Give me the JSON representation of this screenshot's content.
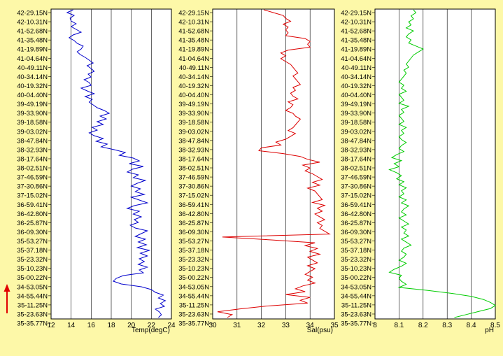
{
  "latitudes": [
    "42-29.15N",
    "42-10.31N",
    "41-52.68N",
    "41-35.48N",
    "41-19.89N",
    "41-04.64N",
    "40-49.11N",
    "40-34.14N",
    "40-19.32N",
    "40-04.40N",
    "39-49.19N",
    "39-33.90N",
    "39-18.58N",
    "39-03.02N",
    "38-47.84N",
    "38-32.93N",
    "38-17.64N",
    "38-02.51N",
    "37-46.59N",
    "37-30.86N",
    "37-15.02N",
    "36-59.41N",
    "36-42.80N",
    "36-25.87N",
    "36-09.30N",
    "35-53.27N",
    "35-37.18N",
    "35-23.32N",
    "35-10.23N",
    "35-00.22N",
    "34-53.05N",
    "34-55.44N",
    "35-11.25N",
    "35-23.63N",
    "35-35.77N"
  ],
  "colors": {
    "background": "#fdf8a8",
    "plot_bg": "#ffffff",
    "grid": "#000000",
    "arrow": "#e00000",
    "temp": "#0000cc",
    "sal": "#dd0000",
    "ph": "#00cc00"
  },
  "chart_data": [
    {
      "type": "line",
      "xlabel": "Temp(degC)",
      "xlim": [
        12,
        24
      ],
      "xticks": [
        12,
        14,
        16,
        18,
        20,
        22,
        24
      ],
      "series": [
        {
          "values": [
            14.2,
            13.6,
            14.3,
            13.9,
            14.0,
            14.5,
            14.0,
            14.5,
            15.0,
            14.2,
            13.8,
            14.3,
            14.6,
            15.2,
            15.0,
            14.6,
            14.9,
            15.4,
            15.8,
            16.2,
            15.6,
            16.0,
            16.3,
            15.7,
            16.0,
            15.3,
            15.8,
            16.0,
            15.0,
            15.6,
            16.3,
            15.4,
            16.1,
            15.8,
            16.2,
            16.6,
            17.3,
            17.8,
            16.9,
            17.5,
            16.6,
            17.2,
            16.1,
            16.6,
            15.8,
            16.3,
            17.2,
            16.5,
            17.6,
            17.0,
            18.3,
            19.4,
            18.8,
            20.2,
            20.8,
            19.8,
            21.2,
            20.1,
            19.6,
            20.7,
            20.2,
            21.4,
            20.6,
            20.0,
            20.9,
            20.4,
            21.3,
            20.0,
            20.8,
            21.6,
            20.3,
            19.6,
            20.8,
            20.2,
            21.0,
            20.3,
            20.7,
            19.9,
            20.4,
            21.6,
            21.0,
            20.4,
            21.4,
            20.7,
            21.5,
            20.6,
            21.8,
            20.9,
            21.6,
            20.8,
            21.3,
            20.7,
            21.6,
            20.8,
            21.2,
            19.2,
            18.5,
            18.2,
            19.0,
            21.0,
            22.0,
            22.4,
            23.2,
            22.7,
            23.4,
            22.9,
            23.3,
            22.4,
            22.8,
            23.0,
            22.7
          ]
        }
      ]
    },
    {
      "type": "line",
      "xlabel": "Sal(psu)",
      "xlim": [
        30,
        35
      ],
      "xticks": [
        30,
        31,
        32,
        33,
        34,
        35
      ],
      "series": [
        {
          "values": [
            32.1,
            32.5,
            32.9,
            33.0,
            33.2,
            32.9,
            33.1,
            33.0,
            33.1,
            33.0,
            33.8,
            34.0,
            33.9,
            34.0,
            33.1,
            32.8,
            33.0,
            32.8,
            33.0,
            33.2,
            33.3,
            33.4,
            33.5,
            33.3,
            33.4,
            33.5,
            33.6,
            33.3,
            33.4,
            33.2,
            33.3,
            33.5,
            33.1,
            33.3,
            33.2,
            33.0,
            33.3,
            33.4,
            33.6,
            33.5,
            33.4,
            33.3,
            33.1,
            33.4,
            33.2,
            33.0,
            32.6,
            32.8,
            32.0,
            31.9,
            32.9,
            33.6,
            33.9,
            34.4,
            33.7,
            34.0,
            33.8,
            34.1,
            34.3,
            34.5,
            34.1,
            34.4,
            33.9,
            34.2,
            34.3,
            34.4,
            34.5,
            34.1,
            34.6,
            34.3,
            34.5,
            34.2,
            34.4,
            34.6,
            34.3,
            34.5,
            34.4,
            34.6,
            34.8,
            30.4,
            32.4,
            34.2,
            33.8,
            34.3,
            34.0,
            34.4,
            33.9,
            34.1,
            34.3,
            33.9,
            34.2,
            34.0,
            33.8,
            34.1,
            33.9,
            34.2,
            33.7,
            33.4,
            33.8,
            33.0,
            34.0,
            33.6,
            33.9,
            32.2,
            31.1,
            30.2,
            30.8,
            30.6
          ]
        }
      ]
    },
    {
      "type": "line",
      "xlabel": "pH",
      "xlim": [
        8,
        8.5
      ],
      "xticks": [
        8,
        8.1,
        8.2,
        8.3,
        8.4,
        8.5
      ],
      "series": [
        {
          "values": [
            8.16,
            8.17,
            8.15,
            8.16,
            8.14,
            8.15,
            8.13,
            8.16,
            8.14,
            8.13,
            8.15,
            8.14,
            8.17,
            8.2,
            8.18,
            8.16,
            8.15,
            8.14,
            8.13,
            8.14,
            8.12,
            8.13,
            8.12,
            8.11,
            8.1,
            8.12,
            8.11,
            8.13,
            8.1,
            8.11,
            8.12,
            8.1,
            8.14,
            8.11,
            8.12,
            8.1,
            8.11,
            8.12,
            8.1,
            8.13,
            8.11,
            8.12,
            8.1,
            8.11,
            8.13,
            8.11,
            8.1,
            8.12,
            8.09,
            8.07,
            8.11,
            8.08,
            8.1,
            8.06,
            8.09,
            8.11,
            8.09,
            8.12,
            8.1,
            8.13,
            8.11,
            8.12,
            8.1,
            8.13,
            8.11,
            8.14,
            8.12,
            8.11,
            8.13,
            8.1,
            8.12,
            8.14,
            8.11,
            8.13,
            8.12,
            8.14,
            8.11,
            8.13,
            8.15,
            8.12,
            8.11,
            8.13,
            8.12,
            8.1,
            8.13,
            8.11,
            8.08,
            8.06,
            8.11,
            8.1,
            8.11,
            8.13,
            8.1,
            8.22,
            8.32,
            8.4,
            8.45,
            8.48,
            8.5,
            8.48,
            8.43,
            8.38,
            8.33
          ]
        }
      ]
    }
  ]
}
